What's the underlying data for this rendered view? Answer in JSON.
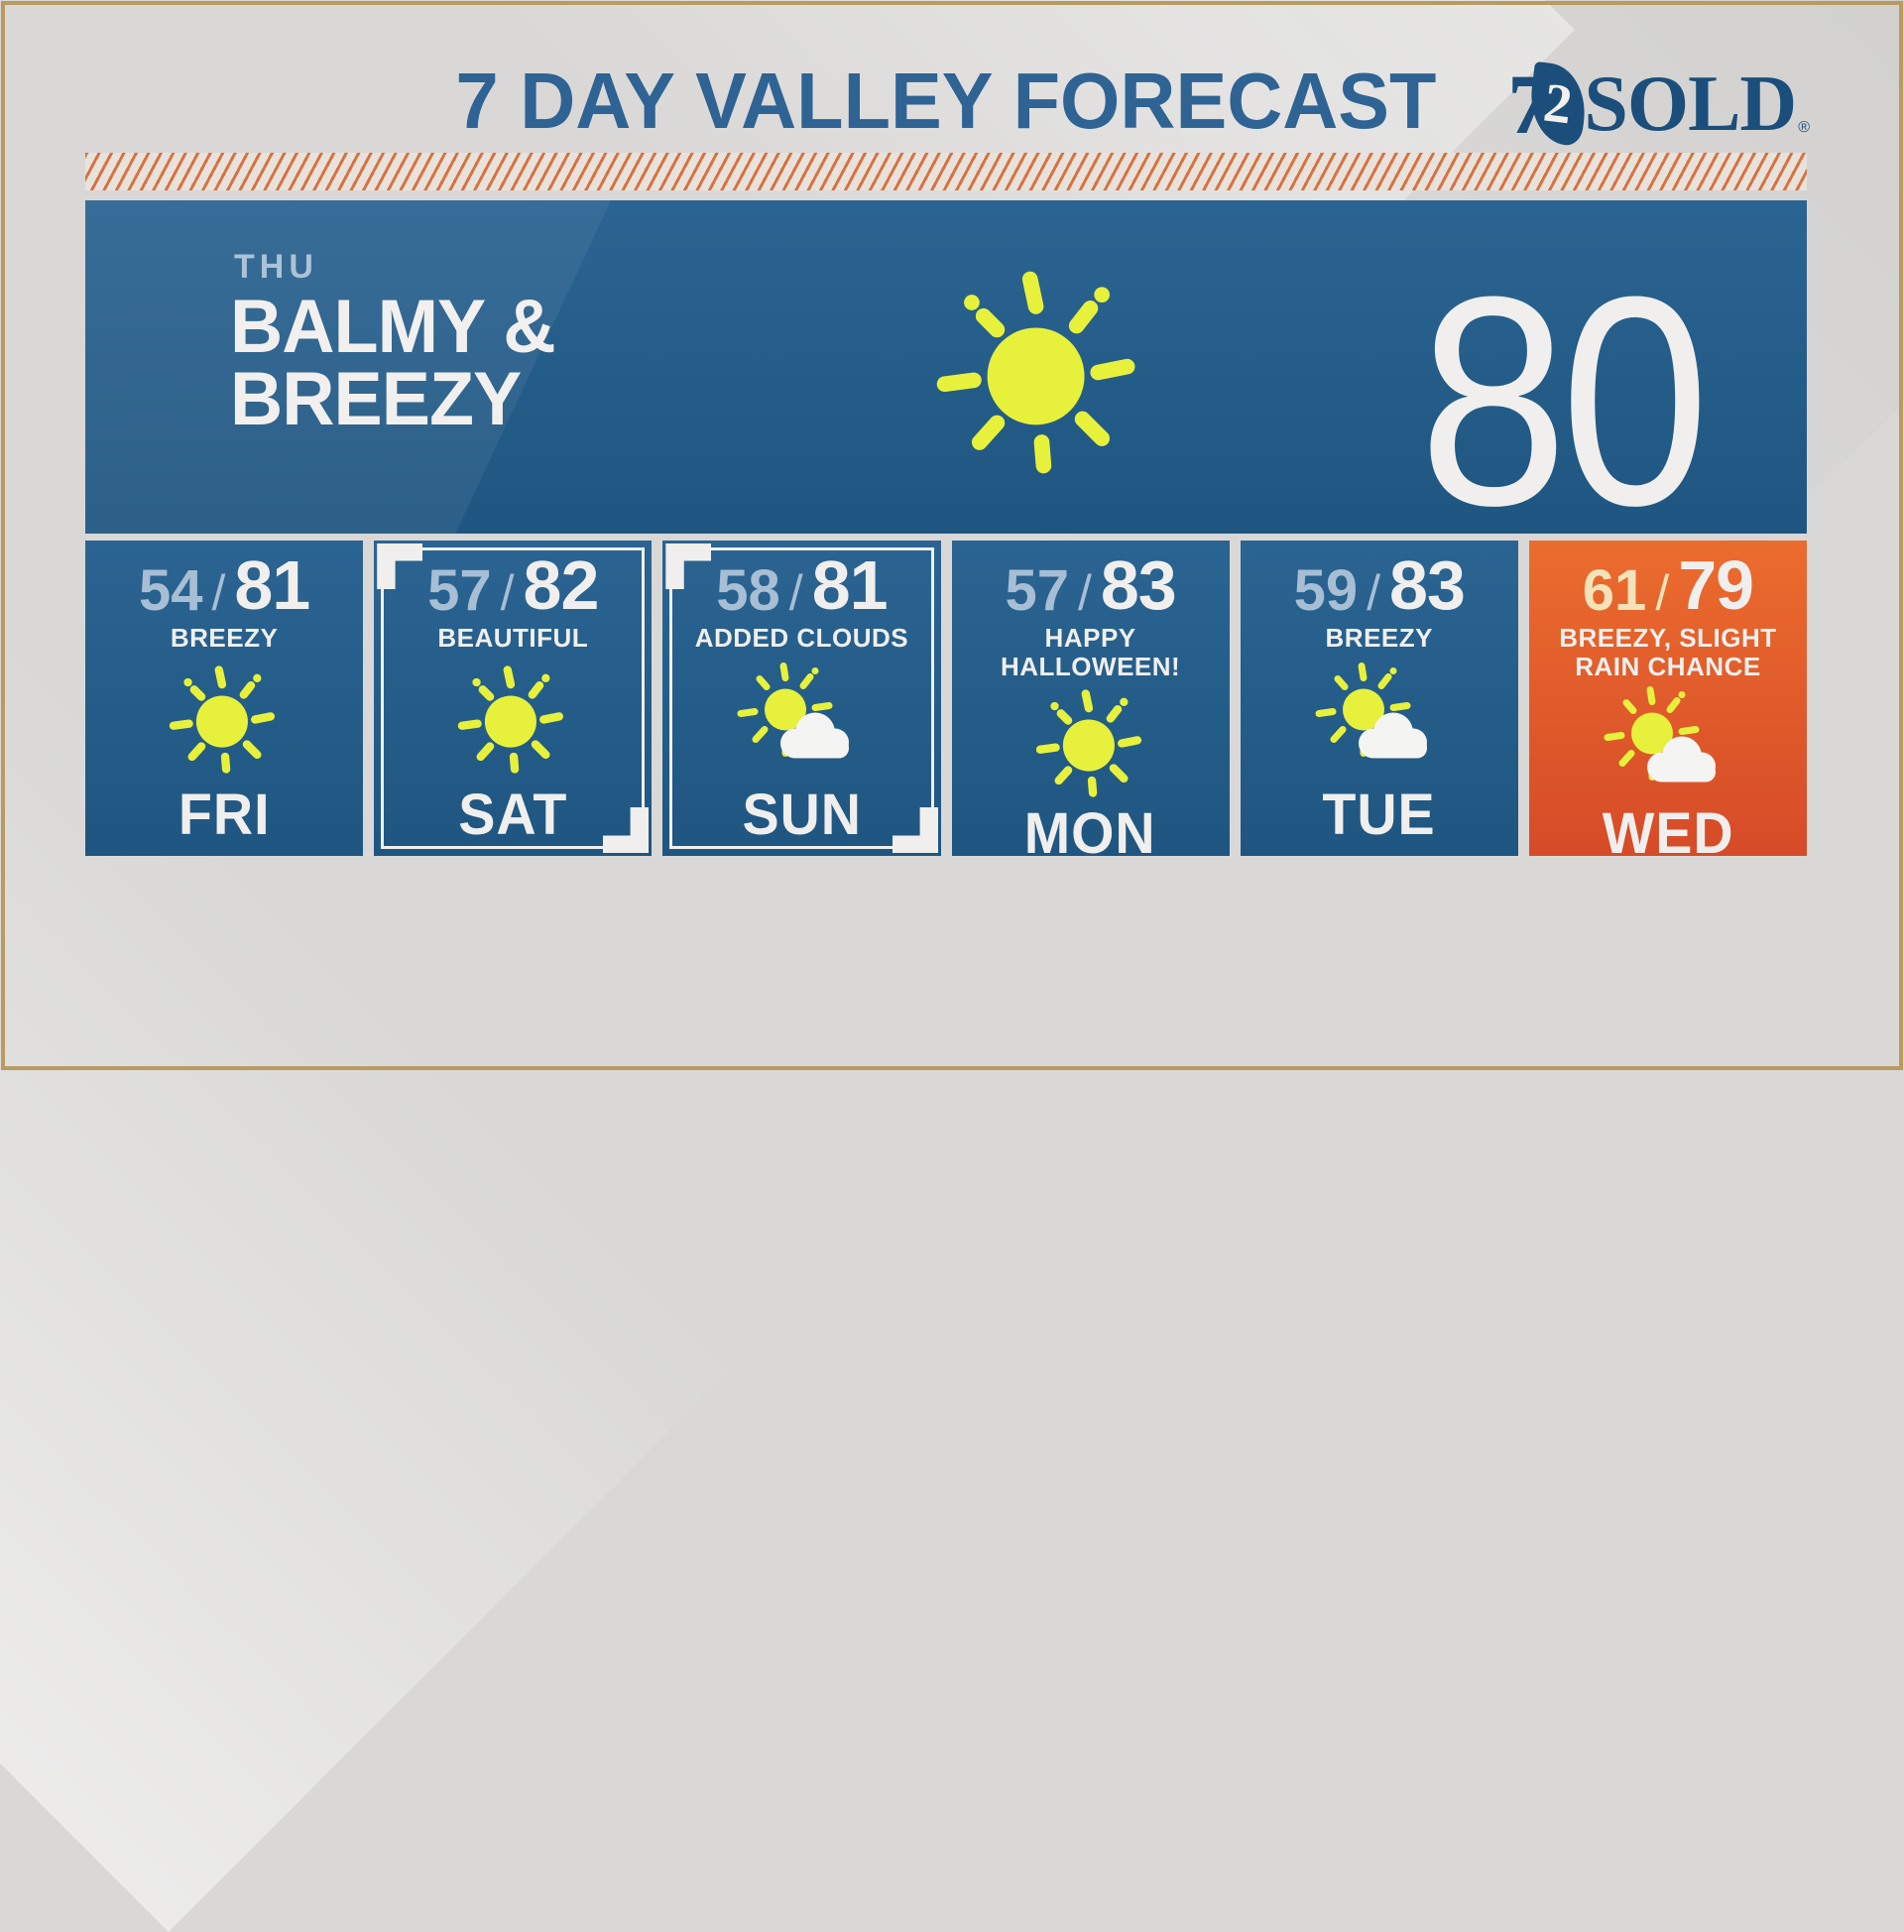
{
  "header": {
    "title": "7 DAY VALLEY FORECAST",
    "logo": {
      "seven": "7",
      "two": "2",
      "sold": "SOLD",
      "registered": "®"
    }
  },
  "today": {
    "day_label": "THU",
    "headline_line1": "BALMY &",
    "headline_line2": "BREEZY",
    "high": "80",
    "icon": "sun"
  },
  "separator": "/",
  "days": [
    {
      "day": "FRI",
      "low": "54",
      "high": "81",
      "condition": "BREEZY",
      "icon": "sun",
      "highlight": false,
      "theme": "blue"
    },
    {
      "day": "SAT",
      "low": "57",
      "high": "82",
      "condition": "BEAUTIFUL",
      "icon": "sun",
      "highlight": true,
      "theme": "blue"
    },
    {
      "day": "SUN",
      "low": "58",
      "high": "81",
      "condition": "ADDED CLOUDS",
      "icon": "sun-cloud",
      "highlight": true,
      "theme": "blue"
    },
    {
      "day": "MON",
      "low": "57",
      "high": "83",
      "condition": "HAPPY HALLOWEEN!",
      "icon": "sun",
      "highlight": false,
      "theme": "blue"
    },
    {
      "day": "TUE",
      "low": "59",
      "high": "83",
      "condition": "BREEZY",
      "icon": "sun-cloud",
      "highlight": false,
      "theme": "blue"
    },
    {
      "day": "WED",
      "low": "61",
      "high": "79",
      "condition": "BREEZY, SLIGHT RAIN CHANCE",
      "icon": "sun-cloud",
      "highlight": false,
      "theme": "orange"
    }
  ],
  "colors": {
    "bg_gray": "#d9d8d6",
    "frame_gold": "#b89b60",
    "title_blue": "#2e6394",
    "logo_navy": "#1c4e7b",
    "stripe_line": "#da7140",
    "stripe_bg": "#e7e3dc",
    "panel_blue_top": "#2b6492",
    "panel_blue_bottom": "#1f5681",
    "card_orange_top": "#eb6c2e",
    "card_orange_bottom": "#d64b28",
    "text_white": "#f0efed",
    "low_text_blue": "#a7bed4",
    "low_text_cream": "#f6e2b8",
    "sun_yellow": "#e7f13c",
    "cloud_white": "#f4f4f2"
  }
}
